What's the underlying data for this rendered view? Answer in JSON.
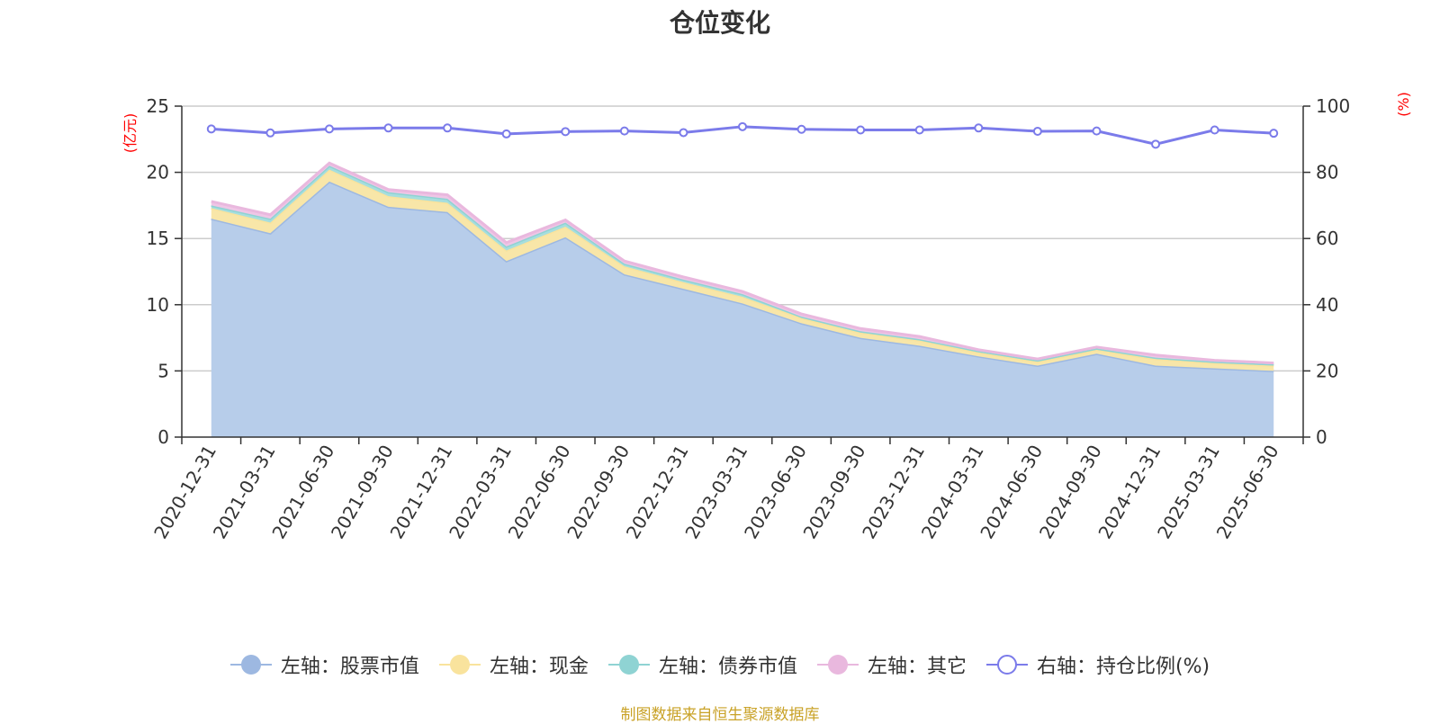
{
  "chart_data": {
    "type": "area",
    "title": "仓位变化",
    "left_axis_unit": "(亿元)",
    "right_axis_unit": "(%)",
    "left_ylim": [
      0,
      25
    ],
    "right_ylim": [
      0,
      100
    ],
    "left_ticks": [
      0,
      5,
      10,
      15,
      20,
      25
    ],
    "right_ticks": [
      0,
      20,
      40,
      60,
      80,
      100
    ],
    "categories": [
      "2020-12-31",
      "2021-03-31",
      "2021-06-30",
      "2021-09-30",
      "2021-12-31",
      "2022-03-31",
      "2022-06-30",
      "2022-09-30",
      "2022-12-31",
      "2023-03-31",
      "2023-06-30",
      "2023-09-30",
      "2023-12-31",
      "2024-03-31",
      "2024-06-30",
      "2024-09-30",
      "2024-12-31",
      "2025-03-31",
      "2025-06-30"
    ],
    "stacked_series": [
      {
        "name": "左轴：股票市值",
        "color": "#9db8e1",
        "fill": "#b7cdea",
        "axis": "left",
        "values": [
          16.5,
          15.4,
          19.3,
          17.4,
          17.0,
          13.3,
          15.1,
          12.3,
          11.2,
          10.1,
          8.6,
          7.5,
          6.9,
          6.1,
          5.4,
          6.3,
          5.4,
          5.2,
          5.0
        ]
      },
      {
        "name": "左轴：现金",
        "color": "#f9e39d",
        "fill": "#f8e6a8",
        "axis": "left",
        "values": [
          0.8,
          0.8,
          0.9,
          0.8,
          0.7,
          0.8,
          0.8,
          0.6,
          0.5,
          0.5,
          0.4,
          0.4,
          0.4,
          0.3,
          0.3,
          0.3,
          0.5,
          0.4,
          0.4
        ]
      },
      {
        "name": "左轴：债券市值",
        "color": "#8fd3d3",
        "fill": "#a6dede",
        "axis": "left",
        "values": [
          0.2,
          0.3,
          0.3,
          0.3,
          0.3,
          0.3,
          0.3,
          0.2,
          0.2,
          0.2,
          0.1,
          0.1,
          0.1,
          0.1,
          0.1,
          0.1,
          0.1,
          0.1,
          0.1
        ]
      },
      {
        "name": "左轴：其它",
        "color": "#e9b8de",
        "fill": "#efc6e6",
        "axis": "left",
        "values": [
          0.3,
          0.3,
          0.2,
          0.2,
          0.3,
          0.3,
          0.2,
          0.2,
          0.2,
          0.2,
          0.2,
          0.2,
          0.2,
          0.1,
          0.1,
          0.1,
          0.2,
          0.1,
          0.1
        ]
      }
    ],
    "line_series": [
      {
        "name": "右轴：持仓比例(%)",
        "color": "#7b7bea",
        "axis": "right",
        "values": [
          93.1,
          91.9,
          93.1,
          93.4,
          93.4,
          91.6,
          92.3,
          92.5,
          92.0,
          93.8,
          93.0,
          92.8,
          92.8,
          93.4,
          92.4,
          92.5,
          88.5,
          92.8,
          91.8
        ]
      }
    ],
    "grid": true,
    "legend_position": "bottom"
  },
  "source_note": "制图数据来自恒生聚源数据库"
}
